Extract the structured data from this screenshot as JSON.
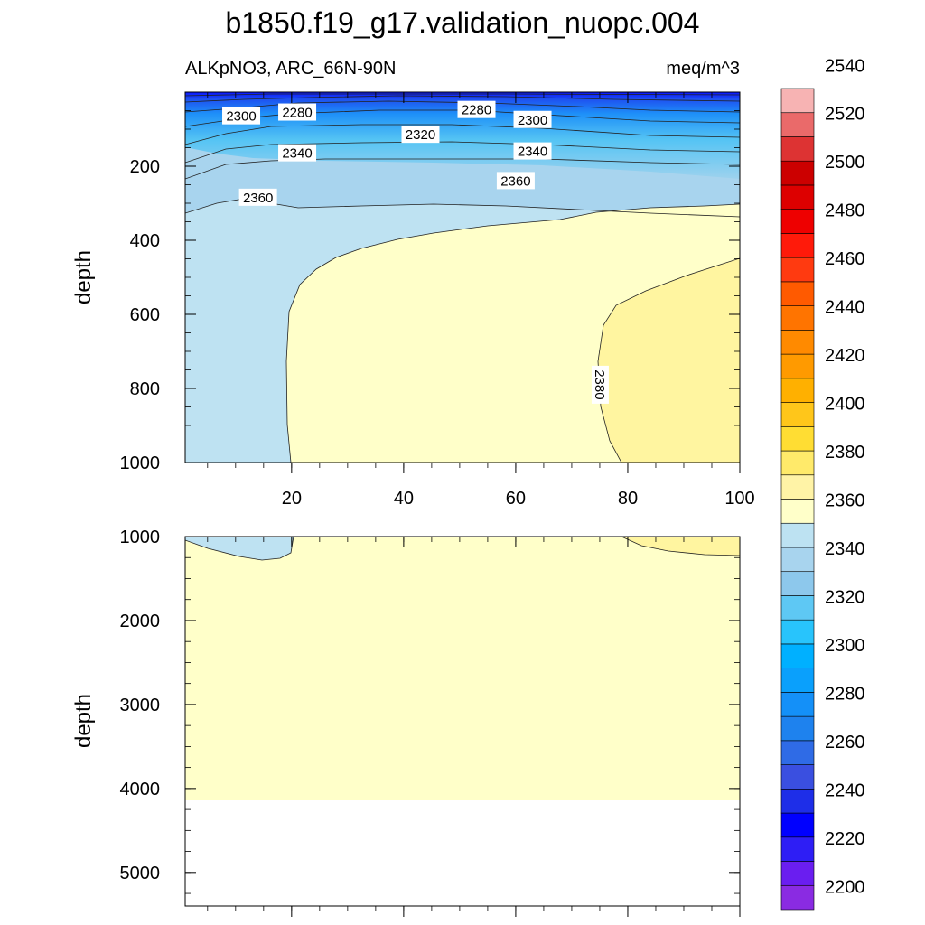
{
  "chart_data": {
    "type": "heatmap",
    "title": "b1850.f19_g17.validation_nuopc.004",
    "left_subtitle": "ALKpNO3, ARC_66N-90N",
    "right_subtitle": "meq/m^3",
    "ylabel": "depth",
    "xlim": [
      1,
      100
    ],
    "x_ticks": [
      20,
      40,
      60,
      80,
      100
    ],
    "panels": [
      {
        "name": "upper",
        "ylim": [
          0,
          1000
        ],
        "y_ticks": [
          200,
          400,
          600,
          800,
          1000
        ],
        "reversed": true
      },
      {
        "name": "lower",
        "ylim": [
          1000,
          5400
        ],
        "y_ticks": [
          1000,
          2000,
          3000,
          4000,
          5000
        ],
        "reversed": true
      }
    ],
    "colorbar": {
      "labels": [
        "2200",
        "2220",
        "2240",
        "2260",
        "2280",
        "2300",
        "2320",
        "2340",
        "2360",
        "2380",
        "2400",
        "2420",
        "2440",
        "2460",
        "2480",
        "2500",
        "2520",
        "2540"
      ],
      "colors": [
        "#8a2be2",
        "#6a1ef0",
        "#2e1ef5",
        "#0000ff",
        "#1e2ee8",
        "#3a4fe0",
        "#2f6be6",
        "#1e82ee",
        "#1490f8",
        "#0aa0fc",
        "#00b0ff",
        "#28c4fc",
        "#5ec8f4",
        "#8dc8ec",
        "#a8d4ee",
        "#bde2f2",
        "#ffffc9",
        "#fff3a6",
        "#ffea6a",
        "#ffdd33",
        "#ffc61a",
        "#ffb000",
        "#ff9a00",
        "#ff8a00",
        "#ff7400",
        "#ff5a00",
        "#ff3a10",
        "#ff1a0a",
        "#ee0000",
        "#dd0000",
        "#cc0000",
        "#dd3333",
        "#ea6a6a",
        "#f7b3b3"
      ]
    },
    "contour_labels": [
      {
        "panel": "upper",
        "text": "2280",
        "x": 21,
        "depth": 55
      },
      {
        "panel": "upper",
        "text": "2300",
        "x": 11,
        "depth": 65
      },
      {
        "panel": "upper",
        "text": "2280",
        "x": 53,
        "depth": 48
      },
      {
        "panel": "upper",
        "text": "2300",
        "x": 63,
        "depth": 75
      },
      {
        "panel": "upper",
        "text": "2320",
        "x": 43,
        "depth": 115
      },
      {
        "panel": "upper",
        "text": "2340",
        "x": 21,
        "depth": 165
      },
      {
        "panel": "upper",
        "text": "2340",
        "x": 63,
        "depth": 160
      },
      {
        "panel": "upper",
        "text": "2360",
        "x": 14,
        "depth": 285
      },
      {
        "panel": "upper",
        "text": "2360",
        "x": 60,
        "depth": 240
      },
      {
        "panel": "upper",
        "text": "2380",
        "x": 75,
        "depth": 790,
        "rotate": 90
      }
    ]
  }
}
